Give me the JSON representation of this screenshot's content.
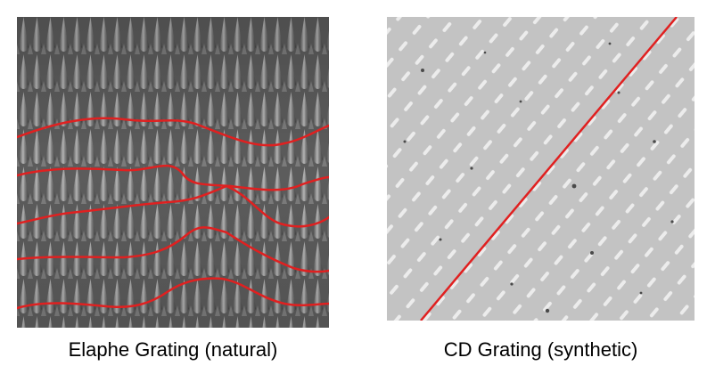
{
  "figure": {
    "panels": [
      {
        "caption": "Elaphe Grating (natural)",
        "image": "grayscale micrograph of snake skin with vertical ridges",
        "overlay": "red traced curves",
        "overlay_color": "#e02020"
      },
      {
        "caption": "CD Grating (synthetic)",
        "image": "light gray surface with diagonal white dash pattern",
        "overlay": "red diagonal line",
        "overlay_color": "#e02020"
      }
    ]
  }
}
